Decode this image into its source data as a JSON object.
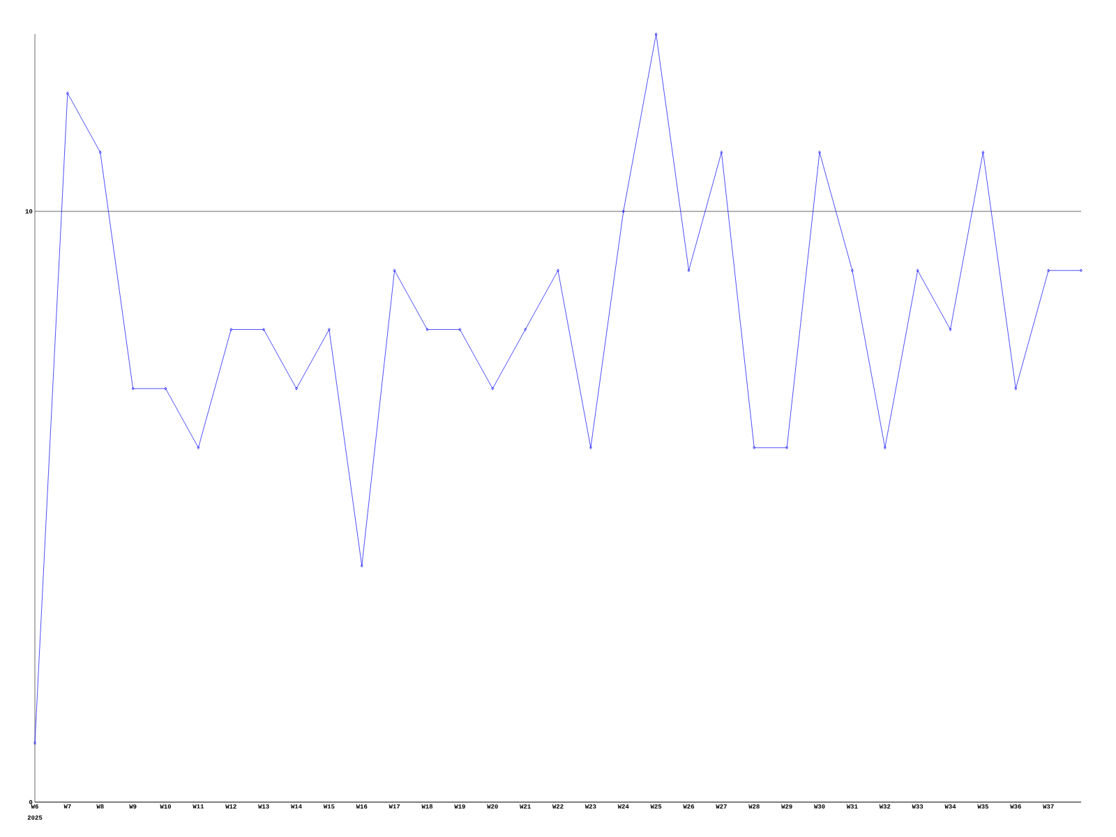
{
  "chart_data": {
    "type": "line",
    "categories": [
      "W6",
      "W7",
      "W8",
      "W9",
      "W10",
      "W11",
      "W12",
      "W13",
      "W14",
      "W15",
      "W16",
      "W17",
      "W18",
      "W19",
      "W20",
      "W21",
      "W22",
      "W23",
      "W24",
      "W25",
      "W26",
      "W27",
      "W28",
      "W29",
      "W30",
      "W31",
      "W32",
      "W33",
      "W34",
      "W35",
      "W36",
      "W37",
      null
    ],
    "values": [
      1,
      12,
      11,
      7,
      7,
      6,
      8,
      8,
      7,
      8,
      4,
      9,
      8,
      8,
      7,
      8,
      9,
      6,
      10,
      13,
      9,
      11,
      6,
      6,
      11,
      9,
      6,
      9,
      8,
      11,
      7,
      9,
      9
    ],
    "color": "#0000ff",
    "ylim": [
      0,
      13
    ],
    "yticks": [
      0,
      10
    ],
    "grid": "y",
    "marker": "diamond",
    "line_style": "solid",
    "annotations": [
      "2025"
    ]
  }
}
